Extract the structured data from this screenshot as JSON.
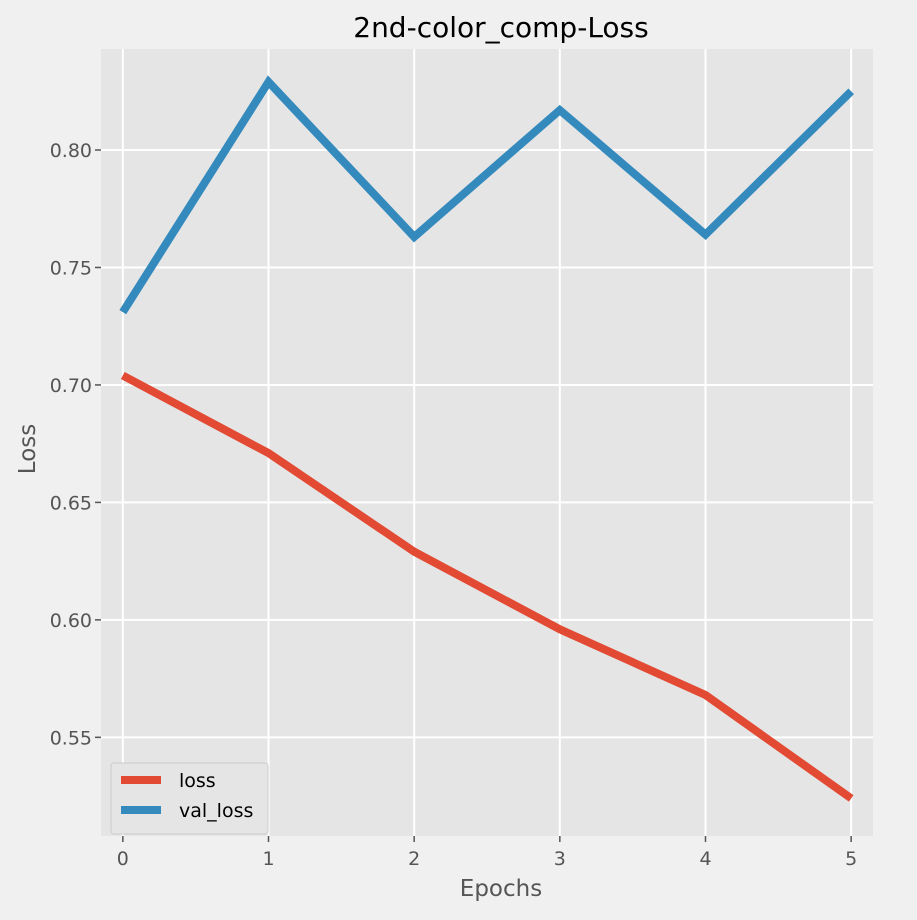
{
  "chart_data": {
    "type": "line",
    "title": "2nd-color_comp-Loss",
    "xlabel": "Epochs",
    "ylabel": "Loss",
    "x": [
      0,
      1,
      2,
      3,
      4,
      5
    ],
    "xlim": [
      -0.15,
      5.15
    ],
    "ylim": [
      0.508,
      0.843
    ],
    "xticks": [
      0,
      1,
      2,
      3,
      4,
      5
    ],
    "yticks": [
      0.55,
      0.6,
      0.65,
      0.7,
      0.75,
      0.8
    ],
    "ytick_labels": [
      "0.55",
      "0.60",
      "0.65",
      "0.70",
      "0.75",
      "0.80"
    ],
    "grid": true,
    "legend_position": "lower-left",
    "series": [
      {
        "name": "loss",
        "color": "#E24A33",
        "values": [
          0.704,
          0.671,
          0.629,
          0.596,
          0.568,
          0.524
        ]
      },
      {
        "name": "val_loss",
        "color": "#348ABD",
        "values": [
          0.731,
          0.829,
          0.763,
          0.817,
          0.764,
          0.825
        ]
      }
    ]
  }
}
